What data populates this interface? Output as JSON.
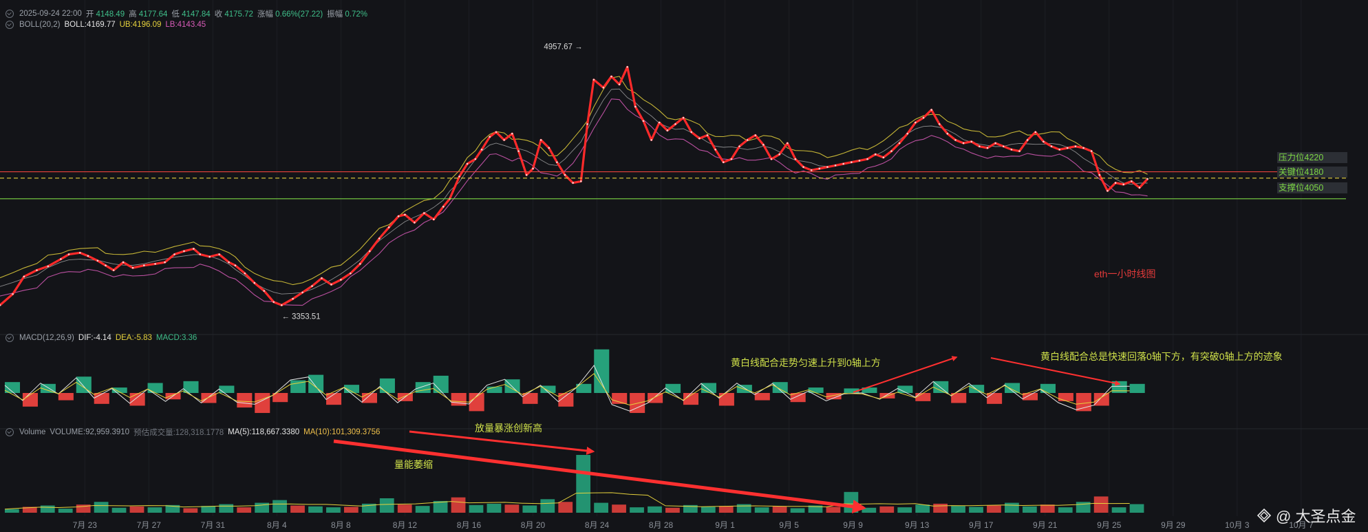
{
  "ohlc_bar": {
    "datetime": "2025-09-24 22:00",
    "open_label": "开",
    "open": "4148.49",
    "high_label": "高",
    "high": "4177.64",
    "low_label": "低",
    "low": "4147.84",
    "close_label": "收",
    "close": "4175.72",
    "change_label": "涨幅",
    "change": "0.66%(27.22)",
    "amplitude_label": "振幅",
    "amplitude": "0.72%"
  },
  "boll_bar": {
    "name": "BOLL(20,2)",
    "mid": "BOLL:4169.77",
    "ub": "UB:4196.09",
    "lb": "LB:4143.45"
  },
  "macd_bar": {
    "name": "MACD(12,26,9)",
    "dif": "DIF:-4.14",
    "dea": "DEA:-5.83",
    "macd": "MACD:3.36"
  },
  "volume_bar": {
    "name": "Volume",
    "volume": "VOLUME:92,959.3910",
    "est": "预估成交量:128,318.1778",
    "ma5": "MA(5):118,667.3380",
    "ma10": "MA(10):101,309.3756"
  },
  "levels": [
    {
      "label": "压力位4220",
      "value": 4220,
      "color": "#e8403c"
    },
    {
      "label": "关键位4180",
      "value": 4180,
      "color": "#e6d23c"
    },
    {
      "label": "支撑位4050",
      "value": 4050,
      "color": "#7cd644"
    }
  ],
  "notes": {
    "title": "eth一小时线图",
    "macd_note_1": "黄白线配合走势匀速上升到0轴上方",
    "macd_note_2": "黄白线配合总是快速回落0轴下方，有突破0轴上方的迹象",
    "vol_note_1": "放量暴涨创新高",
    "vol_note_2": "量能萎缩"
  },
  "watermark": "@ 大圣点金",
  "colors": {
    "background": "#131418",
    "up": "#26a17b",
    "down": "#e0403c",
    "price_line": "#ff2a2a",
    "boll_ub": "#e6d23c",
    "boll_lb": "#d85bb8",
    "boll_mid": "#dcdcdc",
    "annotation_arrow": "#ff3030"
  },
  "chart_data": [
    {
      "type": "line",
      "title": "",
      "x_ticks": [
        "7月 23",
        "7月 27",
        "7月 31",
        "8月 4",
        "8月 8",
        "8月 12",
        "8月 16",
        "8月 20",
        "8月 24",
        "8月 28",
        "9月 1",
        "9月 5",
        "9月 9",
        "9月 13",
        "9月 17",
        "9月 21",
        "9月 25",
        "9月 29",
        "10月 3",
        "10月 7"
      ],
      "x_tick_days": [
        0,
        4,
        8,
        12,
        16,
        20,
        24,
        28,
        32,
        36,
        40,
        44,
        48,
        52,
        56,
        60,
        64,
        68,
        72,
        76
      ],
      "x_range_days": [
        -5.3,
        78.8
      ],
      "ylim": [
        3230,
        5085
      ],
      "annotations": [
        {
          "label": "4957.67 →",
          "day": 31.1,
          "value": 4957.67
        },
        {
          "label": "← 3353.51",
          "day": 12.3,
          "value": 3353.51
        }
      ],
      "series": [
        {
          "points": [
            [
              -5.3,
              3380
            ],
            [
              -4.5,
              3450
            ],
            [
              -3.8,
              3560
            ],
            [
              -3.0,
              3600
            ],
            [
              -2.3,
              3625
            ],
            [
              -1.5,
              3670
            ],
            [
              -1.0,
              3700
            ],
            [
              -0.3,
              3710
            ],
            [
              0.2,
              3690
            ],
            [
              0.8,
              3660
            ],
            [
              1.3,
              3630
            ],
            [
              1.8,
              3600
            ],
            [
              2.4,
              3650
            ],
            [
              3.0,
              3615
            ],
            [
              3.7,
              3630
            ],
            [
              4.4,
              3640
            ],
            [
              5.0,
              3650
            ],
            [
              5.6,
              3700
            ],
            [
              6.2,
              3720
            ],
            [
              6.8,
              3735
            ],
            [
              7.2,
              3700
            ],
            [
              7.8,
              3685
            ],
            [
              8.4,
              3700
            ],
            [
              9.0,
              3650
            ],
            [
              9.4,
              3630
            ],
            [
              10.0,
              3580
            ],
            [
              10.6,
              3520
            ],
            [
              11.2,
              3470
            ],
            [
              11.8,
              3400
            ],
            [
              12.3,
              3380
            ],
            [
              13.0,
              3420
            ],
            [
              13.6,
              3460
            ],
            [
              14.2,
              3500
            ],
            [
              14.8,
              3550
            ],
            [
              15.4,
              3510
            ],
            [
              16.0,
              3540
            ],
            [
              16.6,
              3580
            ],
            [
              17.2,
              3640
            ],
            [
              17.8,
              3720
            ],
            [
              18.4,
              3800
            ],
            [
              19.0,
              3870
            ],
            [
              19.6,
              3940
            ],
            [
              20.0,
              3950
            ],
            [
              20.6,
              3900
            ],
            [
              21.2,
              3960
            ],
            [
              21.8,
              3920
            ],
            [
              22.4,
              4000
            ],
            [
              22.8,
              4050
            ],
            [
              23.4,
              4190
            ],
            [
              23.9,
              4270
            ],
            [
              24.4,
              4300
            ],
            [
              24.8,
              4360
            ],
            [
              25.3,
              4440
            ],
            [
              25.7,
              4470
            ],
            [
              26.2,
              4420
            ],
            [
              26.7,
              4460
            ],
            [
              27.1,
              4350
            ],
            [
              27.6,
              4200
            ],
            [
              28.0,
              4240
            ],
            [
              28.5,
              4420
            ],
            [
              29.0,
              4370
            ],
            [
              29.5,
              4280
            ],
            [
              30.0,
              4200
            ],
            [
              30.5,
              4150
            ],
            [
              31.0,
              4160
            ],
            [
              31.4,
              4520
            ],
            [
              31.8,
              4800
            ],
            [
              32.4,
              4750
            ],
            [
              32.9,
              4820
            ],
            [
              33.4,
              4770
            ],
            [
              33.9,
              4880
            ],
            [
              34.4,
              4630
            ],
            [
              34.9,
              4540
            ],
            [
              35.4,
              4420
            ],
            [
              35.9,
              4530
            ],
            [
              36.4,
              4480
            ],
            [
              36.9,
              4520
            ],
            [
              37.4,
              4560
            ],
            [
              37.9,
              4470
            ],
            [
              38.4,
              4430
            ],
            [
              38.9,
              4450
            ],
            [
              39.4,
              4360
            ],
            [
              39.9,
              4280
            ],
            [
              40.4,
              4300
            ],
            [
              40.9,
              4380
            ],
            [
              41.4,
              4420
            ],
            [
              41.9,
              4450
            ],
            [
              42.4,
              4390
            ],
            [
              42.9,
              4300
            ],
            [
              43.4,
              4330
            ],
            [
              43.9,
              4400
            ],
            [
              44.4,
              4300
            ],
            [
              44.9,
              4250
            ],
            [
              45.4,
              4230
            ],
            [
              45.9,
              4240
            ],
            [
              46.4,
              4250
            ],
            [
              46.9,
              4260
            ],
            [
              47.4,
              4270
            ],
            [
              47.9,
              4280
            ],
            [
              48.4,
              4290
            ],
            [
              48.9,
              4300
            ],
            [
              49.4,
              4330
            ],
            [
              49.9,
              4310
            ],
            [
              50.4,
              4350
            ],
            [
              50.9,
              4400
            ],
            [
              51.4,
              4460
            ],
            [
              51.9,
              4530
            ],
            [
              52.4,
              4560
            ],
            [
              52.9,
              4610
            ],
            [
              53.4,
              4520
            ],
            [
              53.9,
              4460
            ],
            [
              54.4,
              4420
            ],
            [
              54.9,
              4400
            ],
            [
              55.4,
              4410
            ],
            [
              55.9,
              4380
            ],
            [
              56.4,
              4370
            ],
            [
              56.9,
              4400
            ],
            [
              57.4,
              4380
            ],
            [
              57.9,
              4360
            ],
            [
              58.4,
              4350
            ],
            [
              58.9,
              4420
            ],
            [
              59.4,
              4470
            ],
            [
              59.9,
              4410
            ],
            [
              60.4,
              4380
            ],
            [
              60.9,
              4360
            ],
            [
              61.4,
              4370
            ],
            [
              61.9,
              4380
            ],
            [
              62.4,
              4370
            ],
            [
              62.9,
              4350
            ],
            [
              63.4,
              4200
            ],
            [
              63.9,
              4100
            ],
            [
              64.4,
              4150
            ],
            [
              64.9,
              4140
            ],
            [
              65.4,
              4160
            ],
            [
              65.9,
              4120
            ],
            [
              66.4,
              4175
            ]
          ]
        }
      ]
    },
    {
      "type": "bar",
      "title": "",
      "ylim": [
        -5,
        5
      ],
      "series": [
        {
          "values": [
            1.2,
            -1.5,
            1.0,
            -0.8,
            1.8,
            -1.2,
            0.6,
            -1.4,
            1.1,
            -0.7,
            1.3,
            -1.1,
            0.8,
            -1.6,
            -2.2,
            -1.0,
            1.4,
            2.0,
            -1.3,
            0.9,
            -1.1,
            1.6,
            -0.9,
            1.2,
            1.9,
            -1.4,
            -2.0,
            0.7,
            1.5,
            -1.2,
            0.8,
            -1.5,
            1.0,
            4.8,
            -1.2,
            -2.2,
            -1.1,
            1.0,
            -1.3,
            1.1,
            -1.4,
            0.9,
            -0.8,
            1.2,
            -1.0,
            0.6,
            -0.7,
            0.5,
            0.6,
            -0.6,
            0.8,
            -0.9,
            1.3,
            -1.1,
            0.9,
            -1.2,
            1.1,
            -0.8,
            1.0,
            -0.9,
            -2.0,
            -1.4,
            1.3,
            1.0
          ]
        }
      ]
    },
    {
      "type": "bar",
      "title": "",
      "ylim": [
        0,
        800000
      ],
      "series": [
        {
          "values": [
            40000,
            65000,
            80000,
            45000,
            90000,
            120000,
            55000,
            70000,
            60000,
            85000,
            50000,
            75000,
            95000,
            60000,
            110000,
            140000,
            80000,
            70000,
            60000,
            65000,
            100000,
            160000,
            90000,
            75000,
            130000,
            170000,
            85000,
            100000,
            90000,
            80000,
            150000,
            120000,
            640000,
            110000,
            90000,
            60000,
            70000,
            55000,
            85000,
            65000,
            75000,
            95000,
            60000,
            70000,
            50000,
            80000,
            65000,
            230000,
            55000,
            70000,
            60000,
            90000,
            100000,
            75000,
            65000,
            80000,
            110000,
            70000,
            90000,
            60000,
            120000,
            180000,
            60000,
            95000
          ]
        }
      ]
    }
  ]
}
